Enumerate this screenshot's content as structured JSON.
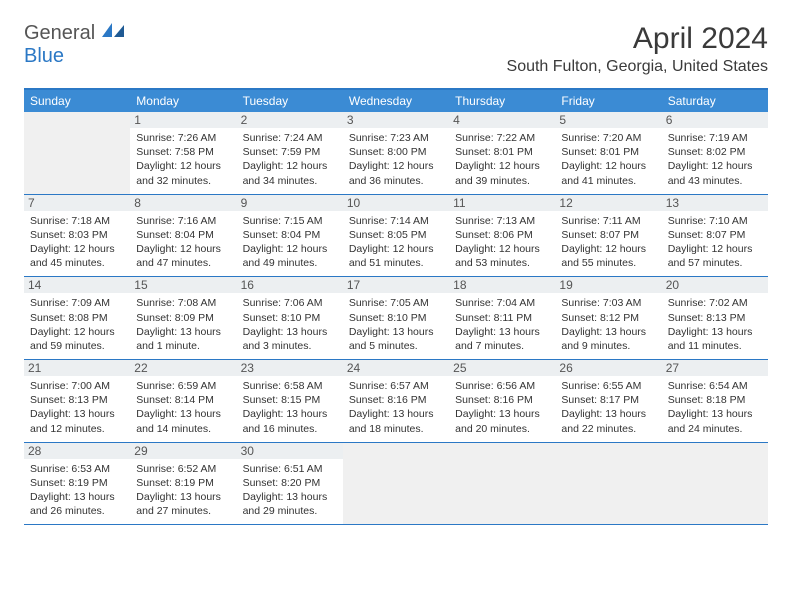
{
  "brand": {
    "part1": "General",
    "part2": "Blue"
  },
  "title": "April 2024",
  "location": "South Fulton, Georgia, United States",
  "colors": {
    "header_bg": "#3b8bd4",
    "header_border": "#2b78c5",
    "daynum_bg": "#eceff1",
    "empty_bg": "#f0f0f0",
    "text": "#333333",
    "brand_blue": "#2b78c5"
  },
  "typography": {
    "title_fontsize": 30,
    "location_fontsize": 16,
    "weekday_fontsize": 12,
    "daynum_fontsize": 12,
    "body_fontsize": 10.5
  },
  "weekdays": [
    "Sunday",
    "Monday",
    "Tuesday",
    "Wednesday",
    "Thursday",
    "Friday",
    "Saturday"
  ],
  "weeks": [
    [
      null,
      {
        "n": "1",
        "sr": "Sunrise: 7:26 AM",
        "ss": "Sunset: 7:58 PM",
        "d1": "Daylight: 12 hours",
        "d2": "and 32 minutes."
      },
      {
        "n": "2",
        "sr": "Sunrise: 7:24 AM",
        "ss": "Sunset: 7:59 PM",
        "d1": "Daylight: 12 hours",
        "d2": "and 34 minutes."
      },
      {
        "n": "3",
        "sr": "Sunrise: 7:23 AM",
        "ss": "Sunset: 8:00 PM",
        "d1": "Daylight: 12 hours",
        "d2": "and 36 minutes."
      },
      {
        "n": "4",
        "sr": "Sunrise: 7:22 AM",
        "ss": "Sunset: 8:01 PM",
        "d1": "Daylight: 12 hours",
        "d2": "and 39 minutes."
      },
      {
        "n": "5",
        "sr": "Sunrise: 7:20 AM",
        "ss": "Sunset: 8:01 PM",
        "d1": "Daylight: 12 hours",
        "d2": "and 41 minutes."
      },
      {
        "n": "6",
        "sr": "Sunrise: 7:19 AM",
        "ss": "Sunset: 8:02 PM",
        "d1": "Daylight: 12 hours",
        "d2": "and 43 minutes."
      }
    ],
    [
      {
        "n": "7",
        "sr": "Sunrise: 7:18 AM",
        "ss": "Sunset: 8:03 PM",
        "d1": "Daylight: 12 hours",
        "d2": "and 45 minutes."
      },
      {
        "n": "8",
        "sr": "Sunrise: 7:16 AM",
        "ss": "Sunset: 8:04 PM",
        "d1": "Daylight: 12 hours",
        "d2": "and 47 minutes."
      },
      {
        "n": "9",
        "sr": "Sunrise: 7:15 AM",
        "ss": "Sunset: 8:04 PM",
        "d1": "Daylight: 12 hours",
        "d2": "and 49 minutes."
      },
      {
        "n": "10",
        "sr": "Sunrise: 7:14 AM",
        "ss": "Sunset: 8:05 PM",
        "d1": "Daylight: 12 hours",
        "d2": "and 51 minutes."
      },
      {
        "n": "11",
        "sr": "Sunrise: 7:13 AM",
        "ss": "Sunset: 8:06 PM",
        "d1": "Daylight: 12 hours",
        "d2": "and 53 minutes."
      },
      {
        "n": "12",
        "sr": "Sunrise: 7:11 AM",
        "ss": "Sunset: 8:07 PM",
        "d1": "Daylight: 12 hours",
        "d2": "and 55 minutes."
      },
      {
        "n": "13",
        "sr": "Sunrise: 7:10 AM",
        "ss": "Sunset: 8:07 PM",
        "d1": "Daylight: 12 hours",
        "d2": "and 57 minutes."
      }
    ],
    [
      {
        "n": "14",
        "sr": "Sunrise: 7:09 AM",
        "ss": "Sunset: 8:08 PM",
        "d1": "Daylight: 12 hours",
        "d2": "and 59 minutes."
      },
      {
        "n": "15",
        "sr": "Sunrise: 7:08 AM",
        "ss": "Sunset: 8:09 PM",
        "d1": "Daylight: 13 hours",
        "d2": "and 1 minute."
      },
      {
        "n": "16",
        "sr": "Sunrise: 7:06 AM",
        "ss": "Sunset: 8:10 PM",
        "d1": "Daylight: 13 hours",
        "d2": "and 3 minutes."
      },
      {
        "n": "17",
        "sr": "Sunrise: 7:05 AM",
        "ss": "Sunset: 8:10 PM",
        "d1": "Daylight: 13 hours",
        "d2": "and 5 minutes."
      },
      {
        "n": "18",
        "sr": "Sunrise: 7:04 AM",
        "ss": "Sunset: 8:11 PM",
        "d1": "Daylight: 13 hours",
        "d2": "and 7 minutes."
      },
      {
        "n": "19",
        "sr": "Sunrise: 7:03 AM",
        "ss": "Sunset: 8:12 PM",
        "d1": "Daylight: 13 hours",
        "d2": "and 9 minutes."
      },
      {
        "n": "20",
        "sr": "Sunrise: 7:02 AM",
        "ss": "Sunset: 8:13 PM",
        "d1": "Daylight: 13 hours",
        "d2": "and 11 minutes."
      }
    ],
    [
      {
        "n": "21",
        "sr": "Sunrise: 7:00 AM",
        "ss": "Sunset: 8:13 PM",
        "d1": "Daylight: 13 hours",
        "d2": "and 12 minutes."
      },
      {
        "n": "22",
        "sr": "Sunrise: 6:59 AM",
        "ss": "Sunset: 8:14 PM",
        "d1": "Daylight: 13 hours",
        "d2": "and 14 minutes."
      },
      {
        "n": "23",
        "sr": "Sunrise: 6:58 AM",
        "ss": "Sunset: 8:15 PM",
        "d1": "Daylight: 13 hours",
        "d2": "and 16 minutes."
      },
      {
        "n": "24",
        "sr": "Sunrise: 6:57 AM",
        "ss": "Sunset: 8:16 PM",
        "d1": "Daylight: 13 hours",
        "d2": "and 18 minutes."
      },
      {
        "n": "25",
        "sr": "Sunrise: 6:56 AM",
        "ss": "Sunset: 8:16 PM",
        "d1": "Daylight: 13 hours",
        "d2": "and 20 minutes."
      },
      {
        "n": "26",
        "sr": "Sunrise: 6:55 AM",
        "ss": "Sunset: 8:17 PM",
        "d1": "Daylight: 13 hours",
        "d2": "and 22 minutes."
      },
      {
        "n": "27",
        "sr": "Sunrise: 6:54 AM",
        "ss": "Sunset: 8:18 PM",
        "d1": "Daylight: 13 hours",
        "d2": "and 24 minutes."
      }
    ],
    [
      {
        "n": "28",
        "sr": "Sunrise: 6:53 AM",
        "ss": "Sunset: 8:19 PM",
        "d1": "Daylight: 13 hours",
        "d2": "and 26 minutes."
      },
      {
        "n": "29",
        "sr": "Sunrise: 6:52 AM",
        "ss": "Sunset: 8:19 PM",
        "d1": "Daylight: 13 hours",
        "d2": "and 27 minutes."
      },
      {
        "n": "30",
        "sr": "Sunrise: 6:51 AM",
        "ss": "Sunset: 8:20 PM",
        "d1": "Daylight: 13 hours",
        "d2": "and 29 minutes."
      },
      null,
      null,
      null,
      null
    ]
  ]
}
